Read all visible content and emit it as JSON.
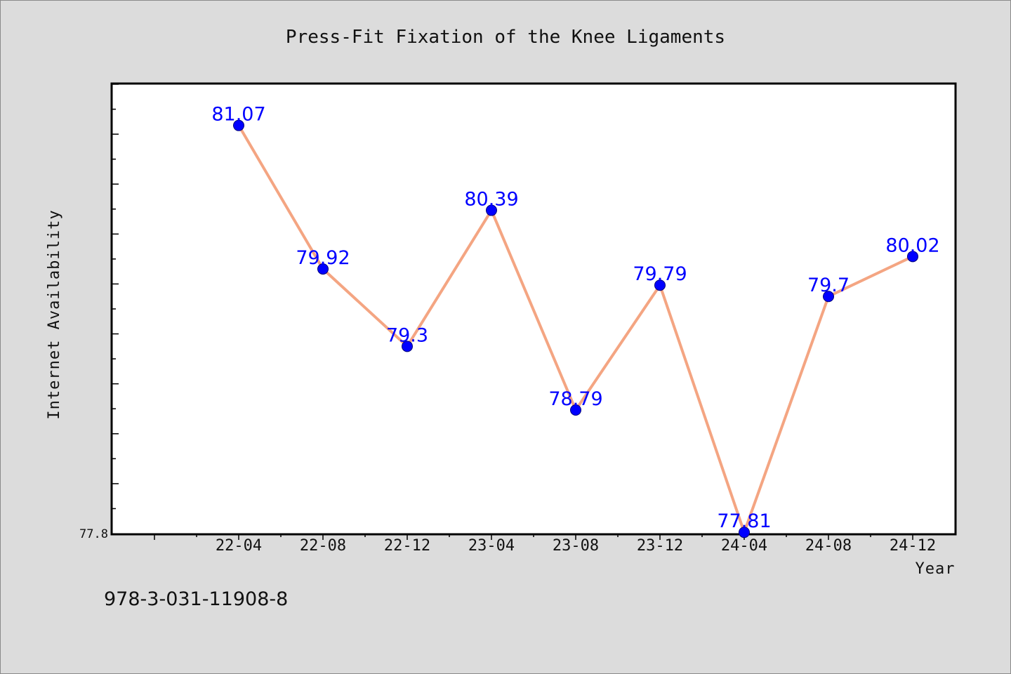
{
  "chart_data": {
    "type": "line",
    "title": "Press-Fit Fixation of the Knee Ligaments",
    "xlabel": "Year",
    "ylabel": "Internet Availability",
    "categories": [
      "22-04",
      "22-08",
      "22-12",
      "23-04",
      "23-08",
      "23-12",
      "24-04",
      "24-08",
      "24-12"
    ],
    "series": [
      {
        "values": [
          81.07,
          79.92,
          79.3,
          80.39,
          78.79,
          79.79,
          77.81,
          79.7,
          80.02
        ],
        "labels": [
          "81.07",
          "79.92",
          "79.3",
          "80.39",
          "78.79",
          "79.79",
          "77.81",
          "79.7",
          "80.02"
        ]
      }
    ],
    "ylim": [
      77.8,
      81.4
    ],
    "ytick_labels": [
      {
        "value": 77.8,
        "label": "77.8"
      }
    ],
    "grid": false,
    "line_color": "#f4a582",
    "marker_color": "#0000ff",
    "label_color": "#0000ff"
  },
  "caption": "978-3-031-11908-8"
}
